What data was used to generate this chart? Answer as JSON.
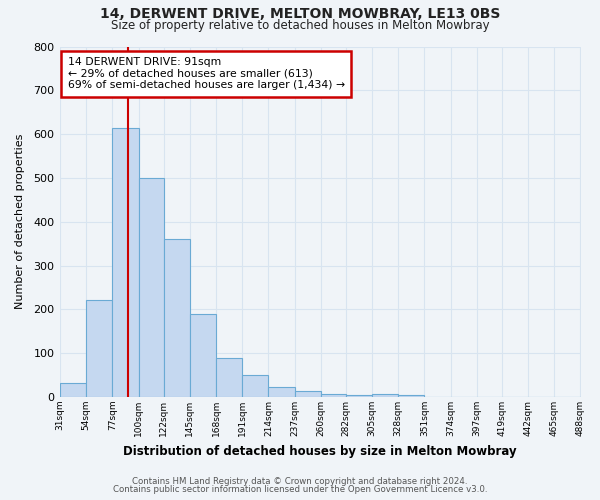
{
  "title1": "14, DERWENT DRIVE, MELTON MOWBRAY, LE13 0BS",
  "title2": "Size of property relative to detached houses in Melton Mowbray",
  "xlabel": "Distribution of detached houses by size in Melton Mowbray",
  "ylabel": "Number of detached properties",
  "bin_labels": [
    "31sqm",
    "54sqm",
    "77sqm",
    "100sqm",
    "122sqm",
    "145sqm",
    "168sqm",
    "191sqm",
    "214sqm",
    "237sqm",
    "260sqm",
    "282sqm",
    "305sqm",
    "328sqm",
    "351sqm",
    "374sqm",
    "397sqm",
    "419sqm",
    "442sqm",
    "465sqm",
    "488sqm"
  ],
  "bar_values": [
    33,
    222,
    614,
    500,
    360,
    190,
    88,
    50,
    22,
    13,
    8,
    4,
    8,
    4,
    0,
    0,
    0,
    0,
    0,
    0,
    0
  ],
  "bar_color": "#c5d8f0",
  "bar_edge_color": "#6aaad4",
  "bin_edges": [
    31,
    54,
    77,
    100,
    122,
    145,
    168,
    191,
    214,
    237,
    260,
    282,
    305,
    328,
    351,
    374,
    397,
    419,
    442,
    465,
    488
  ],
  "annotation_title": "14 DERWENT DRIVE: 91sqm",
  "annotation_line1": "← 29% of detached houses are smaller (613)",
  "annotation_line2": "69% of semi-detached houses are larger (1,434) →",
  "annotation_box_facecolor": "#ffffff",
  "annotation_box_edgecolor": "#cc0000",
  "vline_color": "#cc0000",
  "vline_x": 91,
  "ylim": [
    0,
    800
  ],
  "yticks": [
    0,
    100,
    200,
    300,
    400,
    500,
    600,
    700,
    800
  ],
  "footer1": "Contains HM Land Registry data © Crown copyright and database right 2024.",
  "footer2": "Contains public sector information licensed under the Open Government Licence v3.0.",
  "bg_color": "#f0f4f8",
  "plot_bg_color": "#f0f4f8",
  "grid_color": "#d8e4f0"
}
